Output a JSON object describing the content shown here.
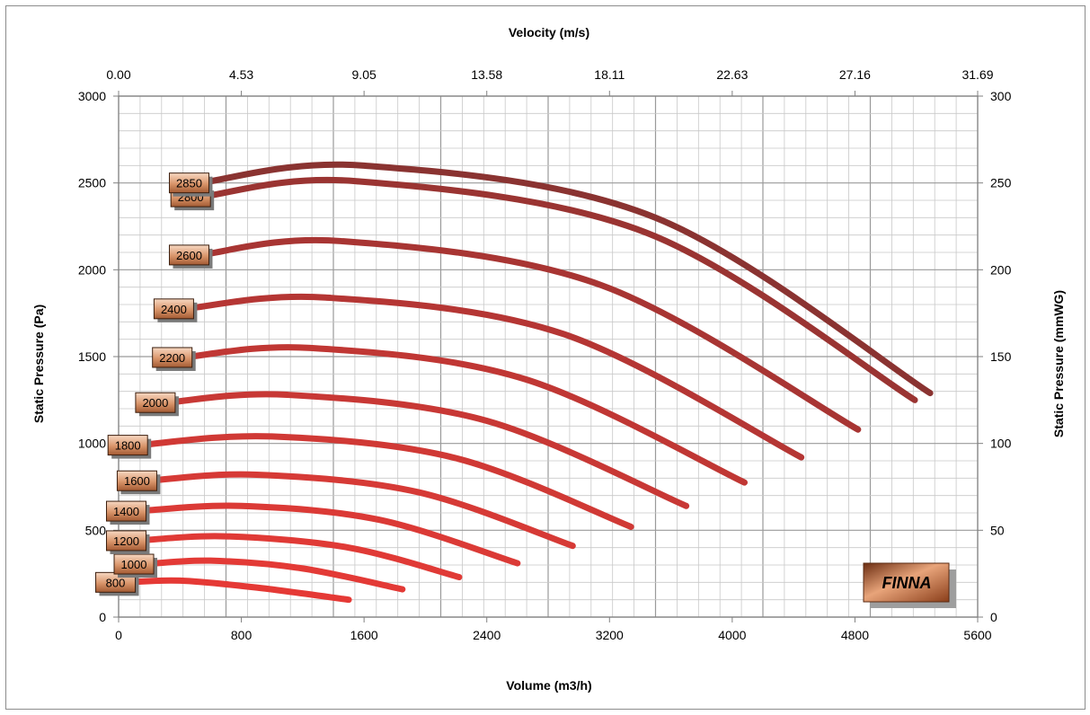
{
  "chart_data": {
    "type": "line",
    "title": "",
    "xlabel": "Volume (m3/h)",
    "x2label": "Velocity (m/s)",
    "ylabel": "Static Pressure (Pa)",
    "y2label": "Static Pressure (mmWG)",
    "xlim": [
      0,
      5600
    ],
    "ylim": [
      0,
      3000
    ],
    "y2lim": [
      0,
      300
    ],
    "x_ticks": [
      0,
      800,
      1600,
      2400,
      3200,
      4000,
      4800,
      5600
    ],
    "x_tick_labels": [
      "0",
      "800",
      "1600",
      "2400",
      "3200",
      "4000",
      "4800",
      "5600"
    ],
    "x2_tick_labels": [
      "0.00",
      "4.53",
      "9.05",
      "13.58",
      "18.11",
      "22.63",
      "27.16",
      "31.69"
    ],
    "y_ticks": [
      0,
      500,
      1000,
      1500,
      2000,
      2500,
      3000
    ],
    "y_tick_labels": [
      "0",
      "500",
      "1000",
      "1500",
      "2000",
      "2500",
      "3000"
    ],
    "y2_tick_labels": [
      "0",
      "50",
      "100",
      "150",
      "200",
      "250",
      "300"
    ],
    "grid": true,
    "series": [
      {
        "name": "800",
        "color": "#e53935",
        "x": [
          50,
          400,
          900,
          1500
        ],
        "y": [
          200,
          210,
          170,
          100
        ]
      },
      {
        "name": "1000",
        "color": "#e33a36",
        "x": [
          170,
          600,
          1200,
          1850
        ],
        "y": [
          305,
          325,
          280,
          160
        ]
      },
      {
        "name": "1200",
        "color": "#e03a36",
        "x": [
          120,
          700,
          1500,
          2220
        ],
        "y": [
          440,
          465,
          400,
          230
        ]
      },
      {
        "name": "1400",
        "color": "#db3a36",
        "x": [
          120,
          800,
          1700,
          2600
        ],
        "y": [
          610,
          640,
          560,
          310
        ]
      },
      {
        "name": "1600",
        "color": "#d63a36",
        "x": [
          190,
          900,
          1950,
          2960
        ],
        "y": [
          785,
          820,
          720,
          410
        ]
      },
      {
        "name": "1800",
        "color": "#d03935",
        "x": [
          130,
          1000,
          2200,
          3340
        ],
        "y": [
          990,
          1040,
          915,
          520
        ]
      },
      {
        "name": "2000",
        "color": "#c83835",
        "x": [
          310,
          1100,
          2400,
          3700
        ],
        "y": [
          1235,
          1280,
          1130,
          640
        ]
      },
      {
        "name": "2200",
        "color": "#c03734",
        "x": [
          420,
          1250,
          2650,
          4080
        ],
        "y": [
          1495,
          1550,
          1370,
          775
        ]
      },
      {
        "name": "2400",
        "color": "#b53634",
        "x": [
          430,
          1350,
          2900,
          4450
        ],
        "y": [
          1775,
          1840,
          1630,
          920
        ]
      },
      {
        "name": "2600",
        "color": "#a83533",
        "x": [
          530,
          1450,
          3150,
          4820
        ],
        "y": [
          2085,
          2165,
          1910,
          1080
        ]
      },
      {
        "name": "2800",
        "color": "#9a3432",
        "x": [
          540,
          1550,
          3450,
          5190
        ],
        "y": [
          2420,
          2510,
          2210,
          1250
        ]
      },
      {
        "name": "2850",
        "color": "#8a3331",
        "x": [
          530,
          1600,
          3500,
          5290
        ],
        "y": [
          2500,
          2600,
          2300,
          1290
        ]
      }
    ],
    "logo_text": "FINNA"
  }
}
